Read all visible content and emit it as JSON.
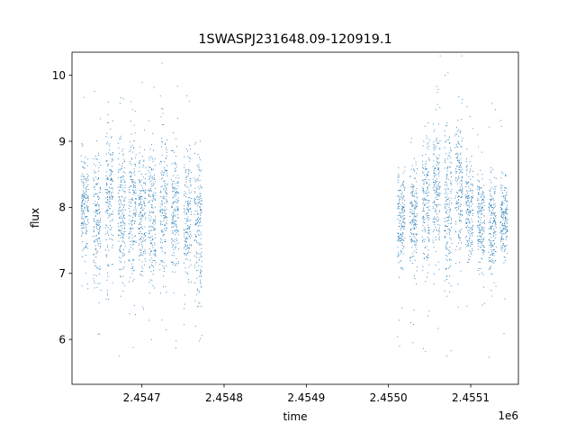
{
  "chart_data": {
    "type": "scatter",
    "title": "1SWASPJ231648.09-120919.1",
    "xlabel": "time",
    "ylabel": "flux",
    "x_offset_label": "1e6",
    "x_ticks": [
      {
        "value": 2454700,
        "label": "2.4547"
      },
      {
        "value": 2454800,
        "label": "2.4548"
      },
      {
        "value": 2454900,
        "label": "2.4549"
      },
      {
        "value": 2455000,
        "label": "2.4550"
      },
      {
        "value": 2455100,
        "label": "2.4551"
      }
    ],
    "y_ticks": [
      {
        "value": 6,
        "label": "6"
      },
      {
        "value": 7,
        "label": "7"
      },
      {
        "value": 8,
        "label": "8"
      },
      {
        "value": 9,
        "label": "9"
      },
      {
        "value": 10,
        "label": "10"
      }
    ],
    "xlim": [
      2454615,
      2455158
    ],
    "ylim": [
      5.32,
      10.35
    ],
    "grid": false,
    "legend": "none",
    "marker_color": "#1f77b4",
    "observing_seasons": [
      {
        "clusters": [
          {
            "t": 2454630,
            "lo": 7.3,
            "hi": 8.8
          },
          {
            "t": 2454645,
            "lo": 6.8,
            "hi": 8.9
          },
          {
            "t": 2454660,
            "lo": 7.0,
            "hi": 9.3
          },
          {
            "t": 2454675,
            "lo": 6.9,
            "hi": 9.1
          },
          {
            "t": 2454688,
            "lo": 6.7,
            "hi": 9.2
          },
          {
            "t": 2454700,
            "lo": 6.9,
            "hi": 8.9
          },
          {
            "t": 2454712,
            "lo": 6.8,
            "hi": 9.0
          },
          {
            "t": 2454726,
            "lo": 6.9,
            "hi": 9.3
          },
          {
            "t": 2454740,
            "lo": 6.9,
            "hi": 9.0
          },
          {
            "t": 2454755,
            "lo": 6.8,
            "hi": 8.9
          },
          {
            "t": 2454768,
            "lo": 6.6,
            "hi": 8.9
          }
        ]
      },
      {
        "clusters": [
          {
            "t": 2455015,
            "lo": 7.1,
            "hi": 8.6
          },
          {
            "t": 2455030,
            "lo": 7.0,
            "hi": 8.8
          },
          {
            "t": 2455045,
            "lo": 7.0,
            "hi": 9.2
          },
          {
            "t": 2455058,
            "lo": 7.1,
            "hi": 9.5
          },
          {
            "t": 2455072,
            "lo": 6.9,
            "hi": 9.3
          },
          {
            "t": 2455085,
            "lo": 7.2,
            "hi": 9.4
          },
          {
            "t": 2455098,
            "lo": 7.1,
            "hi": 8.8
          },
          {
            "t": 2455112,
            "lo": 7.0,
            "hi": 8.6
          },
          {
            "t": 2455126,
            "lo": 6.9,
            "hi": 8.6
          },
          {
            "t": 2455140,
            "lo": 7.2,
            "hi": 8.5
          }
        ]
      }
    ]
  }
}
